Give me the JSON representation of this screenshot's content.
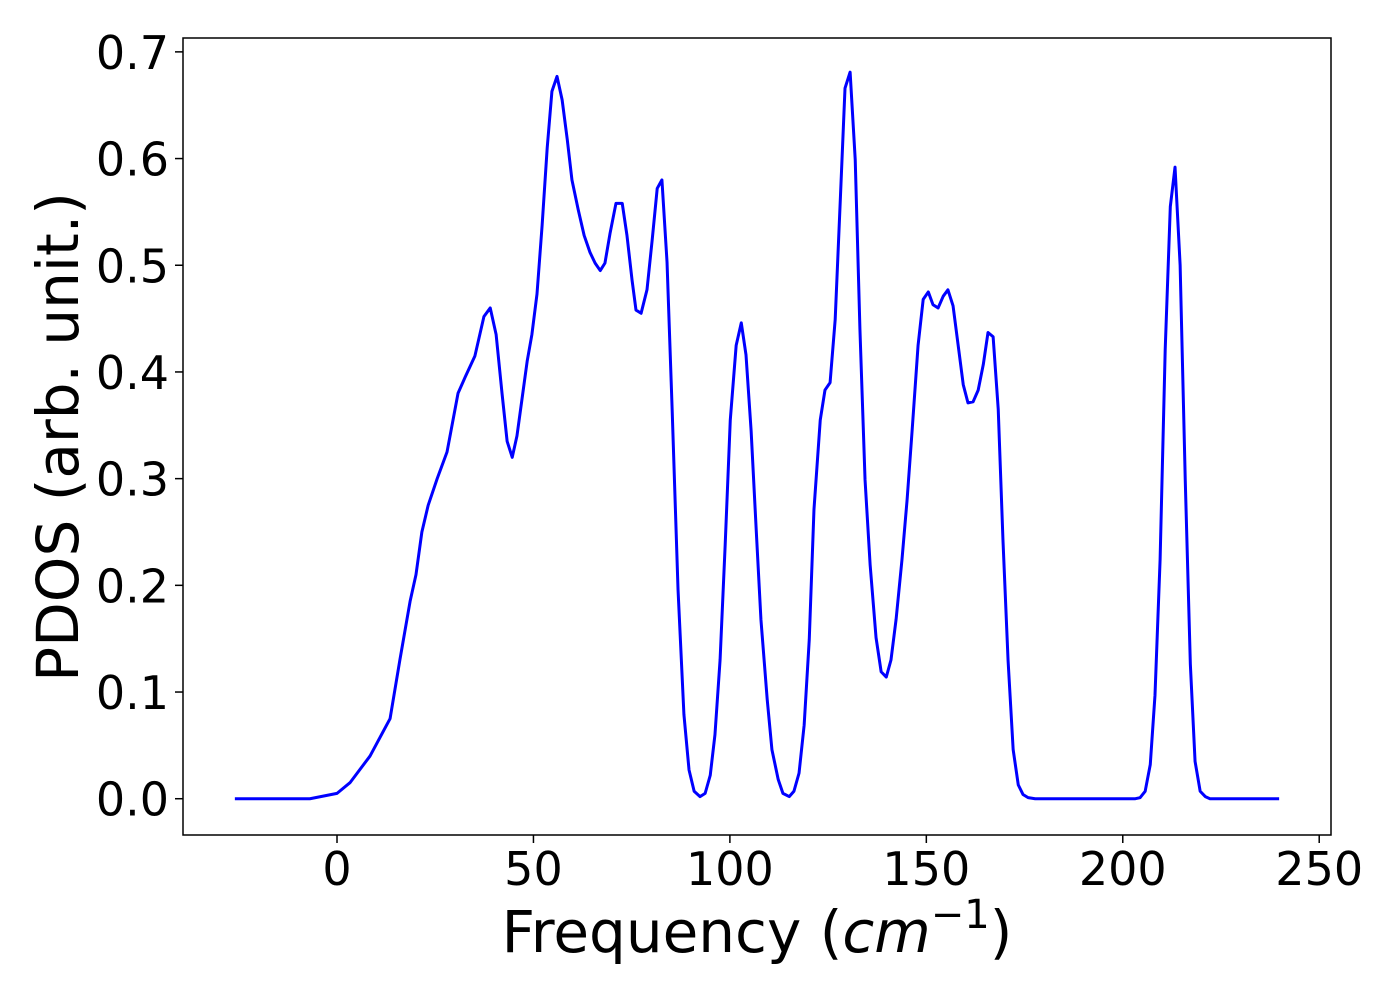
{
  "chart_data": {
    "type": "line",
    "xlabel": [
      "Frequency (",
      "cm",
      "−1",
      ")"
    ],
    "ylabel": "PDOS (arb. unit.)",
    "xlim": [
      -39.2,
      253
    ],
    "ylim": [
      -0.034,
      0.713
    ],
    "xticks": [
      0,
      50,
      100,
      150,
      200,
      250
    ],
    "yticks": [
      {
        "value": 0,
        "label": "0.0"
      },
      0.1,
      0.2,
      0.3,
      0.4,
      0.5,
      0.6,
      0.7
    ],
    "grid": false,
    "x": [
      -26.0,
      -6.9,
      0,
      3.3,
      8.4,
      13.5,
      16.0,
      18.6,
      20.1,
      21.6,
      23.2,
      25.5,
      28.0,
      30.8,
      32.6,
      35.1,
      37.4,
      39.0,
      40.5,
      42.0,
      43.3,
      44.6,
      45.8,
      47.1,
      48.4,
      49.6,
      50.9,
      52.2,
      53.5,
      54.7,
      56.0,
      57.3,
      58.6,
      59.8,
      61.4,
      62.9,
      64.4,
      65.7,
      67.0,
      68.2,
      69.5,
      71.0,
      72.6,
      73.8,
      75.1,
      76.1,
      77.4,
      78.9,
      80.2,
      81.5,
      82.7,
      84.0,
      85.3,
      86.8,
      88.3,
      89.6,
      90.9,
      92.4,
      93.7,
      95.0,
      96.2,
      97.5,
      98.8,
      100.1,
      101.6,
      102.9,
      104.1,
      105.4,
      106.7,
      107.9,
      109.5,
      110.7,
      112.3,
      113.5,
      115.1,
      116.3,
      117.6,
      118.9,
      120.2,
      121.4,
      123.0,
      124.2,
      125.5,
      126.8,
      128.1,
      129.3,
      130.6,
      131.9,
      133.1,
      134.4,
      135.7,
      137.2,
      138.5,
      139.8,
      141.0,
      142.3,
      143.8,
      145.1,
      146.4,
      147.9,
      149.2,
      150.5,
      151.7,
      153.0,
      154.3,
      155.5,
      156.8,
      158.1,
      159.4,
      160.6,
      161.9,
      163.2,
      164.5,
      165.7,
      167.0,
      168.3,
      169.5,
      170.8,
      172.1,
      173.4,
      174.6,
      175.9,
      177.7,
      203.2,
      204.4,
      205.7,
      207.0,
      208.2,
      209.5,
      210.8,
      212.1,
      213.3,
      214.6,
      215.9,
      217.2,
      218.4,
      219.7,
      221.0,
      222.2,
      239.8
    ],
    "series": [
      {
        "name": "PDOS",
        "color": "#0000ff",
        "values": [
          0,
          0,
          0.005,
          0.015,
          0.04,
          0.075,
          0.13,
          0.185,
          0.21,
          0.25,
          0.275,
          0.3,
          0.325,
          0.38,
          0.395,
          0.415,
          0.452,
          0.46,
          0.435,
          0.38,
          0.335,
          0.32,
          0.34,
          0.375,
          0.41,
          0.435,
          0.473,
          0.537,
          0.61,
          0.663,
          0.677,
          0.655,
          0.618,
          0.58,
          0.552,
          0.528,
          0.512,
          0.502,
          0.495,
          0.502,
          0.53,
          0.558,
          0.558,
          0.528,
          0.486,
          0.458,
          0.455,
          0.477,
          0.523,
          0.572,
          0.58,
          0.503,
          0.365,
          0.196,
          0.079,
          0.027,
          0.007,
          0.002,
          0.005,
          0.022,
          0.06,
          0.13,
          0.238,
          0.355,
          0.425,
          0.446,
          0.416,
          0.345,
          0.252,
          0.168,
          0.093,
          0.046,
          0.018,
          0.005,
          0.002,
          0.007,
          0.024,
          0.069,
          0.149,
          0.271,
          0.355,
          0.383,
          0.39,
          0.449,
          0.561,
          0.666,
          0.681,
          0.599,
          0.44,
          0.299,
          0.219,
          0.151,
          0.119,
          0.114,
          0.13,
          0.168,
          0.224,
          0.28,
          0.346,
          0.425,
          0.468,
          0.475,
          0.463,
          0.46,
          0.471,
          0.477,
          0.462,
          0.425,
          0.388,
          0.371,
          0.372,
          0.383,
          0.407,
          0.437,
          0.433,
          0.365,
          0.243,
          0.13,
          0.046,
          0.013,
          0.004,
          0.001,
          0,
          0,
          0.001,
          0.007,
          0.032,
          0.097,
          0.224,
          0.421,
          0.555,
          0.592,
          0.5,
          0.299,
          0.126,
          0.035,
          0.007,
          0.002,
          0,
          0
        ]
      }
    ]
  }
}
